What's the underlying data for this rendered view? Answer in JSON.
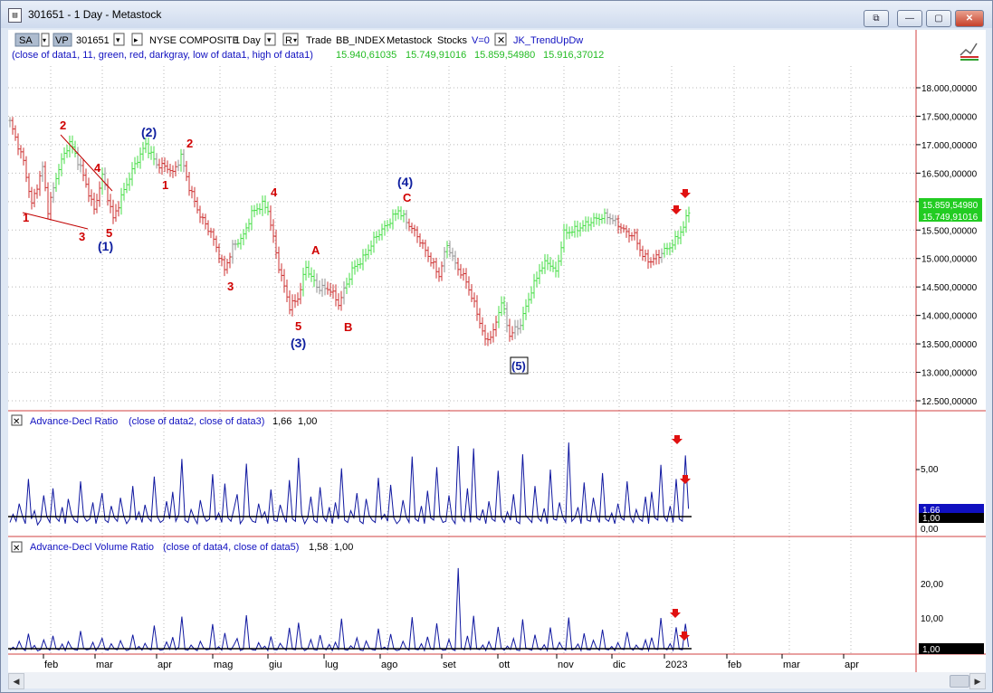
{
  "window": {
    "title": "301651 - 1 Day - Metastock",
    "buttons": [
      "⧉",
      "—",
      "▢",
      "✕"
    ]
  },
  "toolbar": {
    "sa": "SA",
    "vp": "VP",
    "symbol": "301651",
    "security": "NYSE COMPOSITE",
    "period": "1 Day",
    "r": "R",
    "trade": "Trade",
    "index": "BB_INDEX",
    "source": "Metastock",
    "market": "Stocks",
    "v": "V=0",
    "indicator": "JK_TrendUpDw",
    "formula": "(close of data1,  11,  green,  red,  darkgray,  low of data1,  high of data1)",
    "values": [
      "15.940,61035",
      "15.749,91016",
      "15.859,54980",
      "15.916,37012"
    ]
  },
  "price_axis": {
    "labels": [
      "18.000,00000",
      "17.500,00000",
      "17.000,00000",
      "16.500,00000",
      "16.000,00000",
      "15.500,00000",
      "15.000,00000",
      "14.500,00000",
      "14.000,00000",
      "13.500,00000",
      "13.000,00000",
      "12.500,00000"
    ],
    "last_green": "15.859,54980",
    "last_value": "15.749,91016"
  },
  "waves": [
    {
      "t": "1",
      "c": "#d00000"
    },
    {
      "t": "2",
      "c": "#d00000"
    },
    {
      "t": "3",
      "c": "#d00000"
    },
    {
      "t": "4",
      "c": "#d00000"
    },
    {
      "t": "5",
      "c": "#d00000"
    },
    {
      "t": "(1)",
      "c": "#1020a0"
    },
    {
      "t": "(2)",
      "c": "#1020a0"
    },
    {
      "t": "1",
      "c": "#d00000"
    },
    {
      "t": "2",
      "c": "#d00000"
    },
    {
      "t": "3",
      "c": "#d00000"
    },
    {
      "t": "4",
      "c": "#d00000"
    },
    {
      "t": "5",
      "c": "#d00000"
    },
    {
      "t": "(3)",
      "c": "#1020a0"
    },
    {
      "t": "A",
      "c": "#d00000"
    },
    {
      "t": "B",
      "c": "#d00000"
    },
    {
      "t": "(4)",
      "c": "#1020a0"
    },
    {
      "t": "C",
      "c": "#d00000"
    },
    {
      "t": "(5)",
      "c": "#1020a0"
    }
  ],
  "panel2": {
    "title": "Advance-Decl Ratio",
    "args": "(close of data2,  close of data3)",
    "v1": "1,66",
    "v2": "1,00",
    "axis": [
      "5,00",
      "0,00"
    ],
    "badge1": "1,66",
    "badge2": "1,00"
  },
  "panel3": {
    "title": "Advance-Decl Volume Ratio",
    "args": "(close of data4,  close of data5)",
    "v1": "1,58",
    "v2": "1,00",
    "axis": [
      "20,00",
      "10,00"
    ],
    "badge": "1,00"
  },
  "months": [
    "feb",
    "mar",
    "apr",
    "mag",
    "giu",
    "lug",
    "ago",
    "set",
    "ott",
    "nov",
    "dic",
    "2023",
    "feb",
    "mar",
    "apr"
  ],
  "chart_data": {
    "type": "line",
    "anchors": [
      [
        0,
        17400
      ],
      [
        5,
        16700
      ],
      [
        8,
        15950
      ],
      [
        12,
        16600
      ],
      [
        14,
        15850
      ],
      [
        18,
        16600
      ],
      [
        22,
        17050
      ],
      [
        26,
        16600
      ],
      [
        31,
        15850
      ],
      [
        34,
        16450
      ],
      [
        38,
        15700
      ],
      [
        42,
        16200
      ],
      [
        46,
        16650
      ],
      [
        50,
        17000
      ],
      [
        54,
        16650
      ],
      [
        58,
        16600
      ],
      [
        60,
        16500
      ],
      [
        63,
        16800
      ],
      [
        66,
        16250
      ],
      [
        70,
        15750
      ],
      [
        74,
        15450
      ],
      [
        79,
        14800
      ],
      [
        82,
        15200
      ],
      [
        86,
        15400
      ],
      [
        89,
        15800
      ],
      [
        93,
        15950
      ],
      [
        95,
        15850
      ],
      [
        99,
        14850
      ],
      [
        103,
        14150
      ],
      [
        106,
        14300
      ],
      [
        109,
        14850
      ],
      [
        113,
        14500
      ],
      [
        118,
        14450
      ],
      [
        121,
        14200
      ],
      [
        126,
        14800
      ],
      [
        130,
        15000
      ],
      [
        135,
        15400
      ],
      [
        139,
        15600
      ],
      [
        143,
        15850
      ],
      [
        146,
        15650
      ],
      [
        150,
        15400
      ],
      [
        154,
        15050
      ],
      [
        158,
        14700
      ],
      [
        161,
        15250
      ],
      [
        164,
        14900
      ],
      [
        168,
        14600
      ],
      [
        172,
        14050
      ],
      [
        175,
        13550
      ],
      [
        178,
        13700
      ],
      [
        181,
        14250
      ],
      [
        184,
        13650
      ],
      [
        188,
        13850
      ],
      [
        191,
        14300
      ],
      [
        195,
        14800
      ],
      [
        198,
        14950
      ],
      [
        201,
        14750
      ],
      [
        204,
        15450
      ],
      [
        208,
        15500
      ],
      [
        212,
        15600
      ],
      [
        216,
        15700
      ],
      [
        220,
        15750
      ],
      [
        224,
        15600
      ],
      [
        227,
        15450
      ],
      [
        230,
        15400
      ],
      [
        233,
        15050
      ],
      [
        236,
        14950
      ],
      [
        240,
        15100
      ],
      [
        244,
        15250
      ],
      [
        248,
        15550
      ],
      [
        250,
        15850
      ]
    ],
    "ad_ratio": [
      0.5,
      1.2,
      0.6,
      2.1,
      1.1,
      0.4,
      4.2,
      0.8,
      1.5,
      0.3,
      0.7,
      2.8,
      1.0,
      0.5,
      3.4,
      0.9,
      0.6,
      1.8,
      0.4,
      2.5,
      1.2,
      0.7,
      0.5,
      4.0,
      1.0,
      0.6,
      0.8,
      2.2,
      0.4,
      1.5,
      3.0,
      0.7,
      0.5,
      1.9,
      0.9,
      0.6,
      2.6,
      1.1,
      0.4,
      0.8,
      3.6,
      0.7,
      1.4,
      0.5,
      2.0,
      0.9,
      0.6,
      4.4,
      1.0,
      0.5,
      0.7,
      2.3,
      0.8,
      3.1,
      0.6,
      1.2,
      5.9,
      0.7,
      0.5,
      1.6,
      0.9,
      0.4,
      2.4,
      1.1,
      0.6,
      0.8,
      4.6,
      0.7,
      1.3,
      0.5,
      3.8,
      0.9,
      0.6,
      1.7,
      2.9,
      0.4,
      0.8,
      5.5,
      1.0,
      0.6,
      0.5,
      2.1,
      0.9,
      1.4,
      0.4,
      3.3,
      0.7,
      0.6,
      2.0,
      1.1,
      0.5,
      4.1,
      0.8,
      0.6,
      6.0,
      1.2,
      0.4,
      0.9,
      2.7,
      0.7,
      0.5,
      3.5,
      1.0,
      0.6,
      1.8,
      0.4,
      2.2,
      0.8,
      5.1,
      0.7,
      0.5,
      1.5,
      0.9,
      3.0,
      0.6,
      0.4,
      2.5,
      1.1,
      0.7,
      0.5,
      4.3,
      0.8,
      1.2,
      0.6,
      3.7,
      0.9,
      0.4,
      0.7,
      2.4,
      1.0,
      0.5,
      6.1,
      0.8,
      0.6,
      1.9,
      0.4,
      3.2,
      0.9,
      0.7,
      5.2,
      1.1,
      0.5,
      0.6,
      2.8,
      0.8,
      0.4,
      7.0,
      1.0,
      0.6,
      3.4,
      0.5,
      6.8,
      0.9,
      0.7,
      1.6,
      0.4,
      2.3,
      0.8,
      0.6,
      4.9,
      1.0,
      0.5,
      1.4,
      0.7,
      2.9,
      0.6,
      0.4,
      6.3,
      1.1,
      0.8,
      0.5,
      3.6,
      0.9,
      0.6,
      1.7,
      0.4,
      5.0,
      0.8,
      0.7,
      2.2,
      1.0,
      0.5,
      7.3,
      0.6,
      0.9,
      1.8,
      0.4,
      3.9,
      0.7,
      0.6,
      2.6,
      1.1,
      0.5,
      4.7,
      0.8,
      0.6,
      1.3,
      0.4,
      2.1,
      0.9,
      0.7,
      4.0,
      1.0,
      0.5,
      1.6,
      0.8,
      0.6,
      2.7,
      0.4,
      3.1,
      0.9,
      0.7,
      5.4,
      1.0,
      0.6,
      1.9,
      0.5,
      4.2,
      0.8,
      0.6,
      6.2,
      1.66
    ],
    "ad_volume": [
      0.6,
      1.5,
      0.8,
      3.2,
      1.1,
      0.5,
      5.4,
      0.9,
      2.0,
      0.4,
      0.8,
      3.6,
      1.2,
      0.6,
      4.8,
      1.0,
      0.7,
      2.4,
      0.5,
      3.1,
      1.4,
      0.8,
      0.6,
      6.2,
      1.1,
      0.7,
      0.9,
      2.9,
      0.5,
      1.9,
      4.1,
      0.8,
      0.6,
      2.5,
      1.0,
      0.7,
      3.4,
      1.3,
      0.5,
      0.9,
      5.1,
      0.8,
      1.7,
      0.6,
      2.6,
      1.0,
      0.7,
      7.8,
      1.2,
      0.6,
      0.8,
      3.0,
      0.9,
      4.4,
      0.7,
      1.5,
      10.4,
      0.8,
      0.6,
      2.1,
      1.0,
      0.5,
      3.2,
      1.3,
      0.7,
      0.9,
      8.2,
      0.8,
      1.6,
      0.6,
      5.6,
      1.0,
      0.7,
      2.2,
      4.0,
      0.5,
      0.9,
      10.8,
      1.1,
      0.7,
      0.6,
      2.8,
      1.0,
      1.8,
      0.5,
      4.6,
      0.8,
      0.7,
      2.6,
      1.3,
      0.6,
      7.1,
      0.9,
      0.7,
      8.6,
      1.5,
      0.5,
      1.0,
      3.7,
      0.8,
      0.6,
      5.0,
      1.2,
      0.7,
      2.3,
      0.5,
      2.9,
      0.9,
      9.8,
      0.8,
      0.6,
      1.9,
      1.0,
      4.2,
      0.7,
      0.5,
      3.3,
      1.3,
      0.8,
      0.6,
      6.9,
      0.9,
      1.5,
      0.7,
      5.3,
      1.0,
      0.5,
      0.8,
      3.2,
      1.2,
      0.6,
      10.2,
      0.9,
      0.7,
      2.5,
      0.5,
      4.5,
      1.0,
      0.8,
      8.4,
      1.3,
      0.6,
      0.7,
      3.8,
      0.9,
      0.5,
      24.5,
      1.2,
      0.7,
      4.8,
      0.6,
      10.6,
      1.0,
      0.8,
      2.1,
      0.5,
      3.1,
      0.9,
      0.7,
      7.4,
      1.2,
      0.6,
      1.8,
      0.8,
      4.0,
      0.7,
      0.5,
      9.6,
      1.3,
      0.9,
      0.6,
      5.1,
      1.0,
      0.7,
      2.2,
      0.5,
      7.2,
      0.9,
      0.8,
      2.9,
      1.2,
      0.6,
      10.1,
      0.7,
      1.0,
      2.4,
      0.5,
      5.5,
      0.8,
      0.7,
      3.5,
      1.3,
      0.6,
      6.6,
      0.9,
      0.7,
      1.7,
      0.5,
      2.8,
      1.0,
      0.8,
      5.9,
      1.2,
      0.6,
      2.1,
      0.9,
      0.7,
      3.6,
      0.5,
      4.3,
      1.0,
      0.8,
      10.0,
      1.2,
      0.7,
      2.5,
      0.6,
      7.3,
      0.9,
      0.7,
      8.3,
      1.58
    ]
  }
}
